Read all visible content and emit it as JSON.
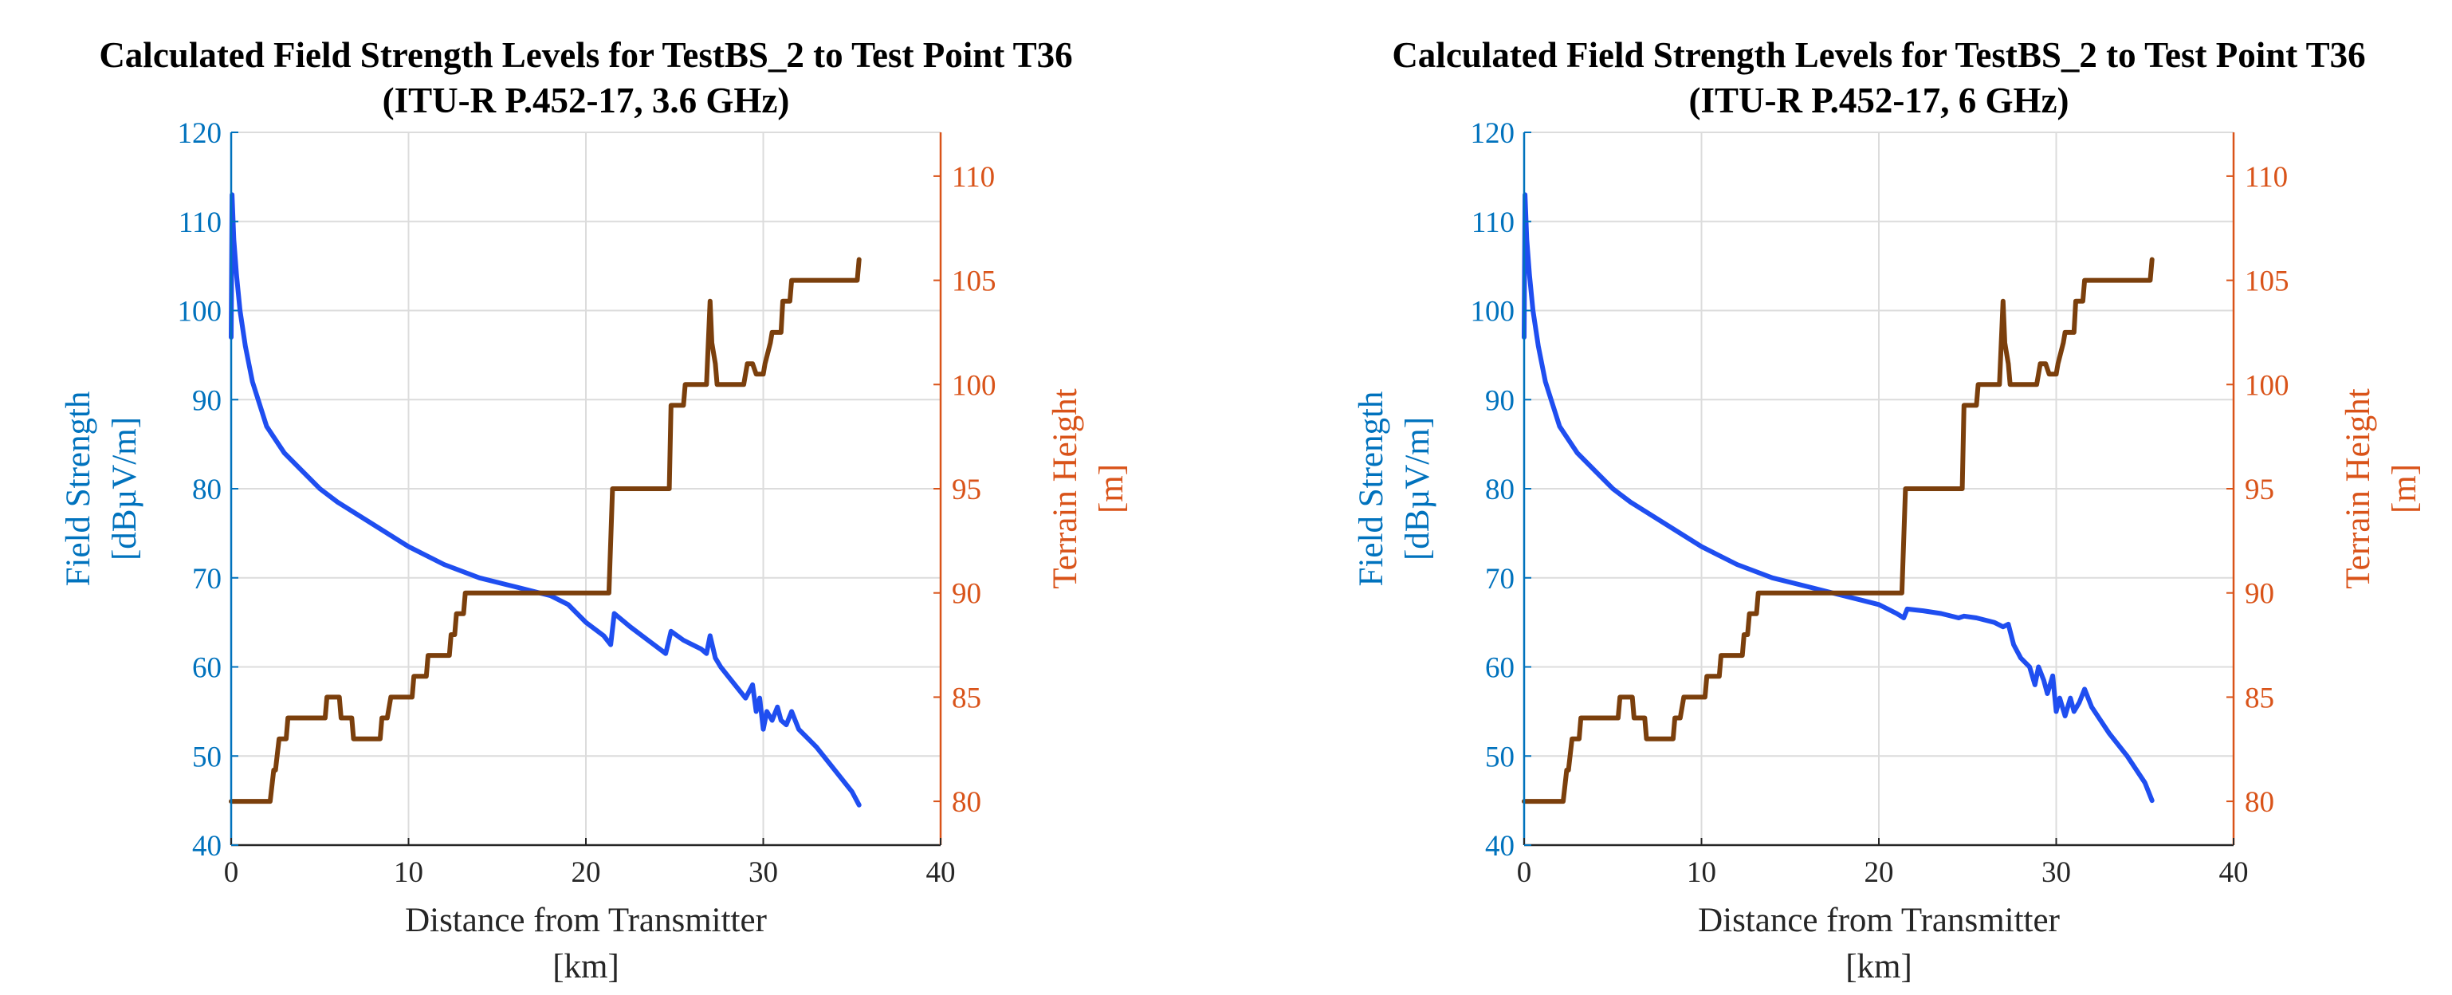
{
  "colors": {
    "field_axis": "#0072BD",
    "terrain_axis": "#D95319",
    "field_line": "#1F4EF0",
    "terrain_line": "#7B3F0C",
    "grid": "#DCDCDC",
    "axis": "#262626"
  },
  "chart_data": [
    {
      "type": "line",
      "title": "Calculated Field Strength Levels for TestBS_2 to Test Point T36",
      "subtitle": "(ITU-R P.452-17, 3.6 GHz)",
      "xlabel": [
        "Distance from Transmitter",
        "[km]"
      ],
      "ylabel_left": [
        "Field Strength",
        "[dBµV/m]"
      ],
      "ylabel_right": [
        "Terrain Height",
        "[m]"
      ],
      "xlim": [
        0,
        40
      ],
      "ylim_left": [
        40,
        120
      ],
      "ylim_right": [
        77.9,
        112.1
      ],
      "xticks": [
        "0",
        "10",
        "20",
        "30",
        "40"
      ],
      "yticks_left": [
        "40",
        "50",
        "60",
        "70",
        "80",
        "90",
        "100",
        "110",
        "120"
      ],
      "yticks_right": [
        "80",
        "85",
        "90",
        "95",
        "100",
        "105",
        "110"
      ],
      "grid": true,
      "series": [
        {
          "name": "Field Strength",
          "axis": "left",
          "x": [
            0,
            0.05,
            0.15,
            0.3,
            0.5,
            0.8,
            1.2,
            2,
            3,
            4,
            5,
            6,
            8,
            10,
            12,
            14,
            16,
            18,
            19,
            20,
            21,
            21.4,
            21.6,
            22.5,
            23.5,
            24.5,
            24.8,
            25.5,
            26,
            26.5,
            26.8,
            27,
            27.3,
            27.6,
            28,
            29,
            29.4,
            29.6,
            29.8,
            30,
            30.2,
            30.5,
            30.8,
            31,
            31.3,
            31.6,
            32,
            33,
            34,
            35,
            35.4
          ],
          "values": [
            97,
            113,
            108,
            104,
            100,
            96,
            92,
            87,
            84,
            82,
            80,
            78.5,
            76,
            73.5,
            71.5,
            70,
            69,
            68,
            67,
            65,
            63.5,
            62.5,
            66,
            64.5,
            63,
            61.5,
            64,
            63,
            62.5,
            62,
            61.5,
            63.5,
            61,
            60,
            59,
            56.5,
            58,
            55,
            56.5,
            53,
            55,
            54,
            55.5,
            54,
            53.5,
            55,
            53,
            51,
            48.5,
            46,
            44.5
          ]
        },
        {
          "name": "Terrain Height",
          "axis": "right",
          "x": [
            0,
            2.2,
            2.4,
            2.5,
            2.7,
            3.1,
            3.2,
            4.3,
            4.4,
            4.5,
            4.6,
            5.3,
            5.4,
            6.1,
            6.2,
            6.3,
            6.4,
            6.8,
            6.9,
            8,
            8.4,
            8.5,
            8.8,
            9,
            9.1,
            10.2,
            10.3,
            11,
            11.1,
            11.6,
            11.7,
            12.3,
            12.4,
            12.6,
            12.7,
            13.1,
            13.2,
            13.5,
            13.6,
            18.5,
            21.3,
            21.5,
            24.7,
            24.8,
            25.5,
            25.6,
            26.7,
            26.8,
            27,
            27.1,
            27.3,
            27.4,
            28,
            28.2,
            28.9,
            29.1,
            29.4,
            29.6,
            30,
            30.1,
            30.4,
            30.5,
            31,
            31.1,
            31.5,
            31.6,
            35.3,
            35.4
          ],
          "values": [
            80,
            80,
            81.5,
            81.5,
            83,
            83,
            84,
            84,
            84,
            84,
            84,
            84,
            85,
            85,
            84,
            84,
            84,
            84,
            83,
            83,
            83,
            84,
            84,
            85,
            85,
            85,
            86,
            86,
            87,
            87,
            87,
            87,
            88,
            88,
            89,
            89,
            90,
            90,
            90,
            90,
            90,
            95,
            95,
            99,
            99,
            100,
            100,
            100,
            104,
            102,
            101,
            100,
            100,
            100,
            100,
            101,
            101,
            100.5,
            100.5,
            101,
            102,
            102.5,
            102.5,
            104,
            104,
            105,
            105,
            106
          ]
        }
      ]
    },
    {
      "type": "line",
      "title": "Calculated Field Strength Levels for TestBS_2 to Test Point T36",
      "subtitle": "(ITU-R P.452-17, 6 GHz)",
      "xlabel": [
        "Distance from Transmitter",
        "[km]"
      ],
      "ylabel_left": [
        "Field Strength",
        "[dBµV/m]"
      ],
      "ylabel_right": [
        "Terrain Height",
        "[m]"
      ],
      "xlim": [
        0,
        40
      ],
      "ylim_left": [
        40,
        120
      ],
      "ylim_right": [
        77.9,
        112.1
      ],
      "xticks": [
        "0",
        "10",
        "20",
        "30",
        "40"
      ],
      "yticks_left": [
        "40",
        "50",
        "60",
        "70",
        "80",
        "90",
        "100",
        "110",
        "120"
      ],
      "yticks_right": [
        "80",
        "85",
        "90",
        "95",
        "100",
        "105",
        "110"
      ],
      "grid": true,
      "series": [
        {
          "name": "Field Strength",
          "axis": "left",
          "x": [
            0,
            0.05,
            0.15,
            0.3,
            0.5,
            0.8,
            1.2,
            2,
            3,
            4,
            5,
            6,
            8,
            10,
            12,
            14,
            16,
            18,
            19,
            20,
            21,
            21.4,
            21.6,
            22.5,
            23.5,
            24.5,
            24.8,
            25.5,
            26.5,
            27,
            27.3,
            27.6,
            28,
            28.5,
            28.8,
            29,
            29.3,
            29.5,
            29.8,
            30,
            30.2,
            30.5,
            30.8,
            31,
            31.3,
            31.6,
            32,
            33,
            34,
            35,
            35.4
          ],
          "values": [
            97,
            113,
            108,
            104,
            100,
            96,
            92,
            87,
            84,
            82,
            80,
            78.5,
            76,
            73.5,
            71.5,
            70,
            69,
            68,
            67.5,
            67,
            66,
            65.5,
            66.5,
            66.3,
            66,
            65.5,
            65.7,
            65.5,
            65,
            64.5,
            64.8,
            62.5,
            61,
            60,
            58,
            60,
            58.5,
            57,
            59,
            55,
            56.5,
            54.5,
            56.5,
            55,
            56,
            57.5,
            55.5,
            52.5,
            50,
            47,
            45
          ]
        },
        {
          "name": "Terrain Height",
          "axis": "right",
          "x": [
            0,
            2.2,
            2.4,
            2.5,
            2.7,
            3.1,
            3.2,
            4.3,
            4.4,
            4.5,
            4.6,
            5.3,
            5.4,
            6.1,
            6.2,
            6.3,
            6.4,
            6.8,
            6.9,
            8,
            8.4,
            8.5,
            8.8,
            9,
            9.1,
            10.2,
            10.3,
            11,
            11.1,
            11.6,
            11.7,
            12.3,
            12.4,
            12.6,
            12.7,
            13.1,
            13.2,
            13.5,
            13.6,
            18.5,
            21.3,
            21.5,
            24.7,
            24.8,
            25.5,
            25.6,
            26.7,
            26.8,
            27,
            27.1,
            27.3,
            27.4,
            28,
            28.2,
            28.9,
            29.1,
            29.4,
            29.6,
            30,
            30.1,
            30.4,
            30.5,
            31,
            31.1,
            31.5,
            31.6,
            35.3,
            35.4
          ],
          "values": [
            80,
            80,
            81.5,
            81.5,
            83,
            83,
            84,
            84,
            84,
            84,
            84,
            84,
            85,
            85,
            84,
            84,
            84,
            84,
            83,
            83,
            83,
            84,
            84,
            85,
            85,
            85,
            86,
            86,
            87,
            87,
            87,
            87,
            88,
            88,
            89,
            89,
            90,
            90,
            90,
            90,
            90,
            95,
            95,
            99,
            99,
            100,
            100,
            100,
            104,
            102,
            101,
            100,
            100,
            100,
            100,
            101,
            101,
            100.5,
            100.5,
            101,
            102,
            102.5,
            102.5,
            104,
            104,
            105,
            105,
            106
          ]
        }
      ]
    }
  ]
}
